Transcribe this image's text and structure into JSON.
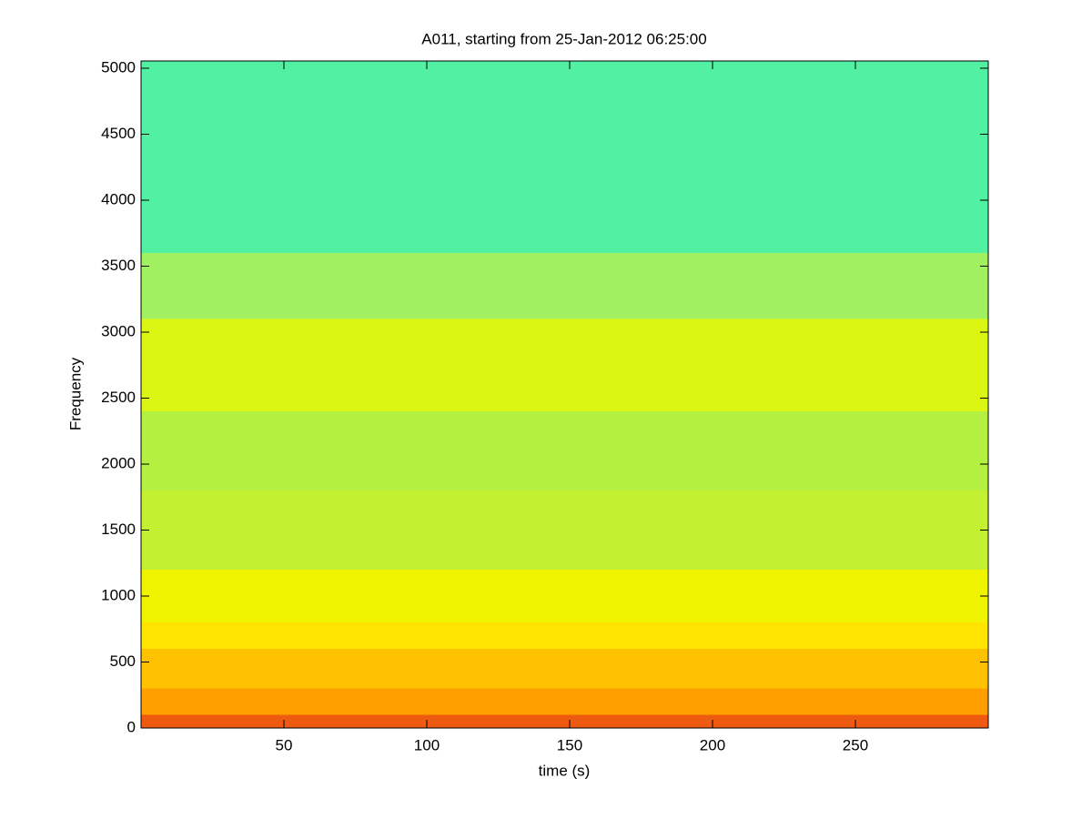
{
  "chart_data": {
    "type": "spectrogram",
    "title": "A011, starting from 25-Jan-2012 06:25:00",
    "xlabel": "time (s)",
    "ylabel": "Frequency",
    "xlim": [
      0,
      296.5
    ],
    "xticks": [
      50,
      100,
      150,
      200,
      250
    ],
    "ylim": [
      0,
      5055
    ],
    "yticks": [
      0,
      500,
      1000,
      1500,
      2000,
      2500,
      3000,
      3500,
      4000,
      4500,
      5000
    ],
    "y_edges": [
      0,
      100,
      300,
      600,
      800,
      1200,
      1800,
      2400,
      3100,
      3600,
      5055
    ],
    "band_colors": [
      "#ee5a10",
      "#ffa000",
      "#ffc200",
      "#ffe400",
      "#f0f400",
      "#c4f032",
      "#b4f040",
      "#dcf614",
      "#a0f060",
      "#52f0a2"
    ]
  }
}
